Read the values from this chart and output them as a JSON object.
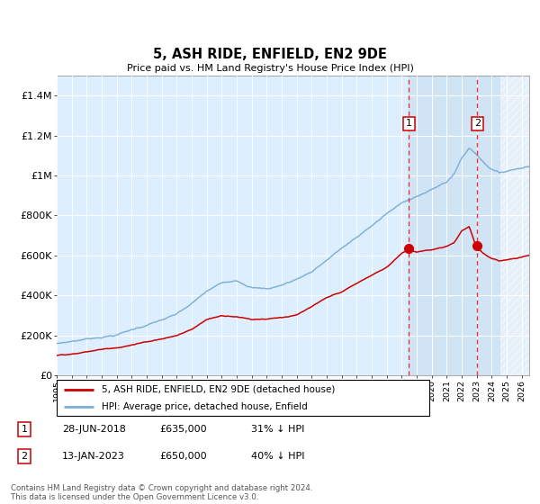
{
  "title": "5, ASH RIDE, ENFIELD, EN2 9DE",
  "subtitle": "Price paid vs. HM Land Registry's House Price Index (HPI)",
  "ylim": [
    0,
    1500000
  ],
  "xlim_start": 1995.0,
  "xlim_end": 2026.5,
  "hpi_color": "#7bafd4",
  "price_color": "#cc0000",
  "bg_color": "#ddeeff",
  "sale1_date": 2018.49,
  "sale1_price": 635000,
  "sale2_date": 2023.04,
  "sale2_price": 650000,
  "legend_label_price": "5, ASH RIDE, ENFIELD, EN2 9DE (detached house)",
  "legend_label_hpi": "HPI: Average price, detached house, Enfield",
  "note1_date": "28-JUN-2018",
  "note1_price": "£635,000",
  "note1_pct": "31% ↓ HPI",
  "note2_date": "13-JAN-2023",
  "note2_price": "£650,000",
  "note2_pct": "40% ↓ HPI",
  "footer": "Contains HM Land Registry data © Crown copyright and database right 2024.\nThis data is licensed under the Open Government Licence v3.0.",
  "yticks": [
    0,
    200000,
    400000,
    600000,
    800000,
    1000000,
    1200000,
    1400000
  ],
  "ytick_labels": [
    "£0",
    "£200K",
    "£400K",
    "£600K",
    "£800K",
    "£1M",
    "£1.2M",
    "£1.4M"
  ]
}
